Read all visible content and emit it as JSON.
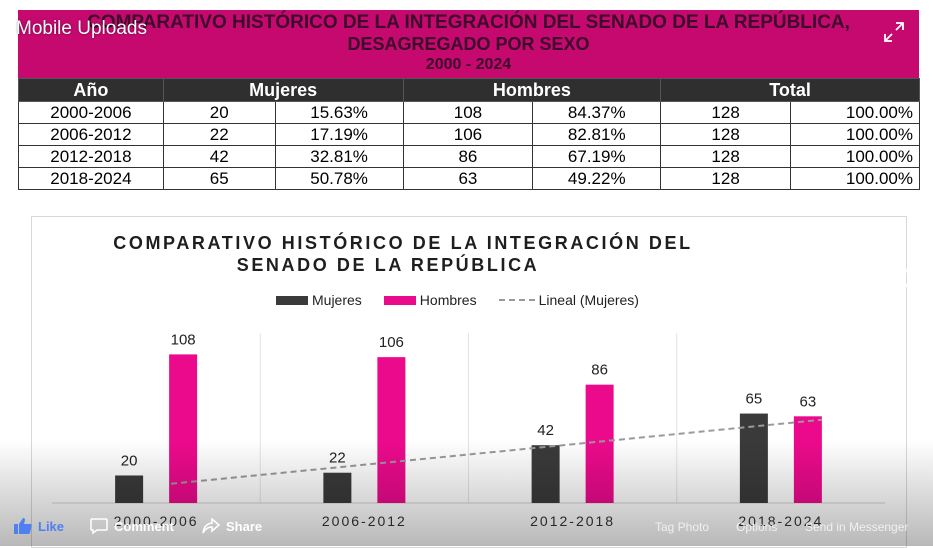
{
  "viewer": {
    "album_label": "Mobile Uploads",
    "actions": {
      "like": "Like",
      "comment": "Comment",
      "share": "Share",
      "tag_photo": "Tag Photo",
      "options": "Options",
      "send_messenger": "Send in Messenger"
    }
  },
  "table": {
    "title_line1": "COMPARATIVO HISTÓRICO DE LA INTEGRACIÓN DEL SENADO DE LA REPÚBLICA,",
    "title_line2": "DESAGREGADO POR SEXO",
    "title_line3": "2000 - 2024",
    "headers": [
      "Año",
      "Mujeres",
      "Hombres",
      "Total"
    ],
    "rows": [
      [
        "2000-2006",
        "20",
        "15.63%",
        "108",
        "84.37%",
        "128",
        "100.00%"
      ],
      [
        "2006-2012",
        "22",
        "17.19%",
        "106",
        "82.81%",
        "128",
        "100.00%"
      ],
      [
        "2012-2018",
        "42",
        "32.81%",
        "86",
        "67.19%",
        "128",
        "100.00%"
      ],
      [
        "2018-2024",
        "65",
        "50.78%",
        "63",
        "49.22%",
        "128",
        "100.00%"
      ]
    ]
  },
  "chart_data": {
    "type": "bar",
    "title_line1": "COMPARATIVO HISTÓRICO DE LA INTEGRACIÓN DEL",
    "title_line2": "SENADO DE LA REPÚBLICA",
    "categories": [
      "2000-2006",
      "2006-2012",
      "2012-2018",
      "2018-2024"
    ],
    "series": [
      {
        "name": "Mujeres",
        "values": [
          20,
          22,
          42,
          65
        ],
        "color": "#3a3a3a"
      },
      {
        "name": "Hombres",
        "values": [
          108,
          106,
          86,
          63
        ],
        "color": "#ec0a8c"
      }
    ],
    "trendline": {
      "name": "Lineal (Mujeres)",
      "of_series": "Mujeres",
      "style": "dashed",
      "color": "#9a9a9a"
    },
    "legend_position": "top",
    "data_labels": true,
    "ylim": [
      0,
      125
    ],
    "grid": false
  },
  "colors": {
    "banner": "#c5096f",
    "header_dark": "#2f2f2f",
    "accent_like": "#4f7ff0"
  }
}
